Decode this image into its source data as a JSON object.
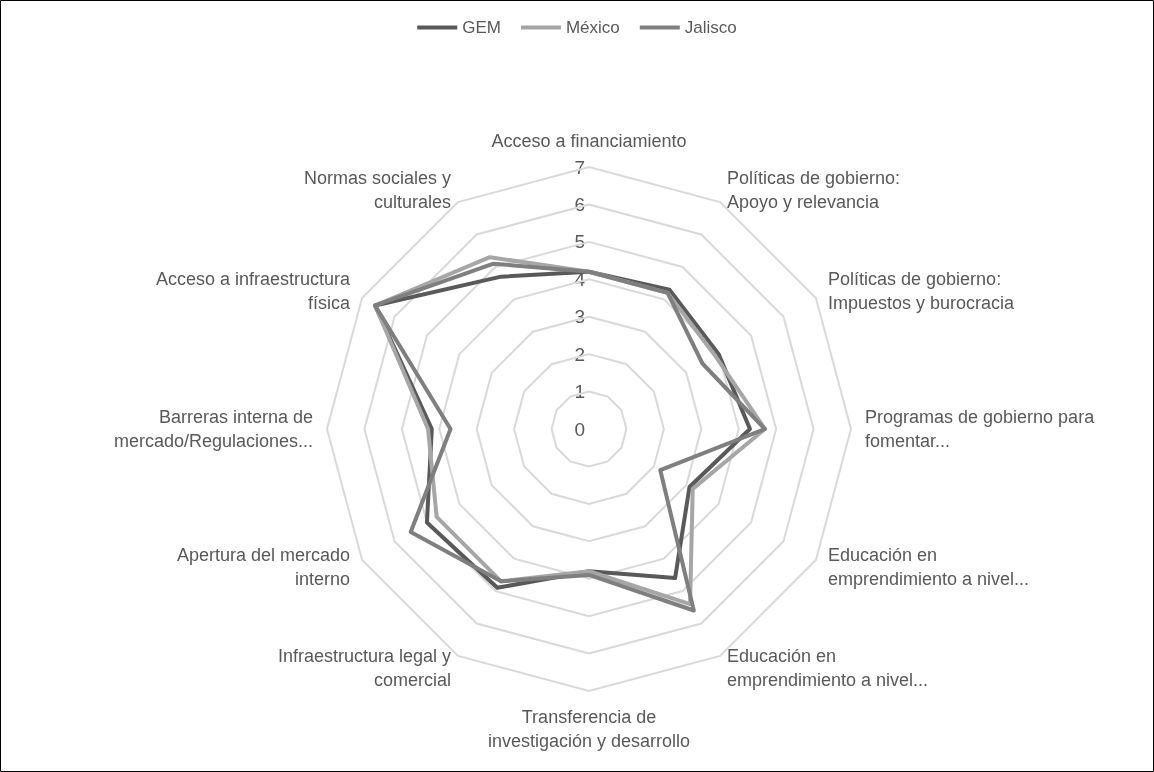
{
  "chart_data": {
    "type": "radar",
    "categories": [
      "Acceso a financiamiento",
      "Políticas de gobierno: Apoyo y relevancia",
      "Políticas de gobierno: Impuestos y burocracia",
      "Programas de gobierno para fomentar...",
      "Educación en emprendimiento a nivel...",
      "Educación en emprendimiento a nivel...",
      "Transferencia de investigación y desarrollo",
      "Infraestructura legal y comercial",
      "Apertura del mercado interno",
      "Barreras interna de mercado/Regulaciones...",
      "Acceso a infraestructura física",
      "Normas sociales y culturales"
    ],
    "series": [
      {
        "name": "GEM",
        "color": "#595959",
        "values": [
          4.2,
          4.3,
          4.0,
          4.3,
          3.1,
          4.6,
          3.8,
          4.9,
          5.0,
          4.2,
          6.6,
          4.7
        ]
      },
      {
        "name": "México",
        "color": "#a6a6a6",
        "values": [
          4.2,
          4.2,
          3.9,
          4.7,
          3.2,
          5.4,
          3.8,
          4.7,
          4.7,
          4.3,
          6.6,
          5.3
        ]
      },
      {
        "name": "Jalisco",
        "color": "#7f7f7f",
        "values": [
          4.2,
          4.2,
          3.5,
          4.7,
          2.2,
          5.6,
          3.9,
          4.7,
          5.5,
          3.7,
          6.6,
          5.1
        ]
      }
    ],
    "ylim": [
      0,
      7
    ],
    "yticks": [
      0,
      1,
      2,
      3,
      4,
      5,
      6,
      7
    ],
    "legend": "top",
    "grid": true,
    "marker": "none",
    "line_style": "solid"
  }
}
